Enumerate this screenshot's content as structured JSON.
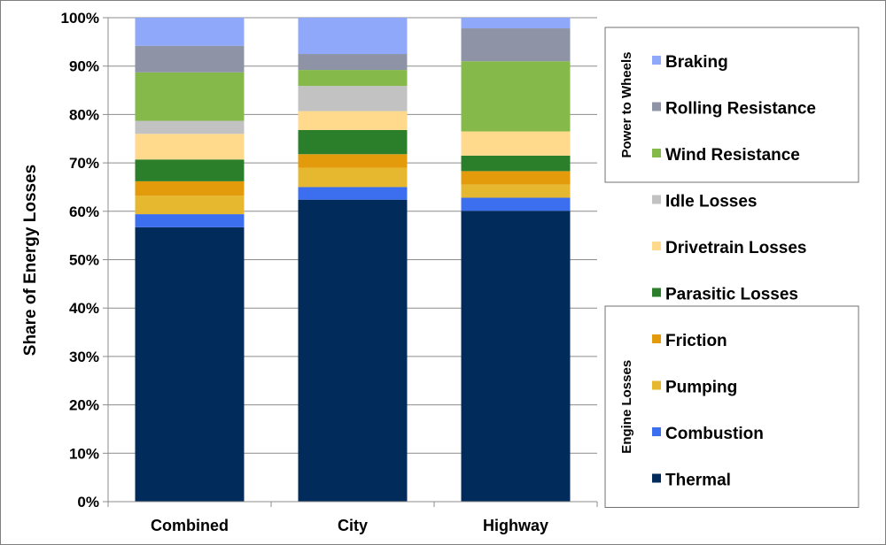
{
  "chart_data": {
    "type": "bar",
    "stacked": true,
    "categories": [
      "Combined",
      "City",
      "Highway"
    ],
    "ylabel": "Share of Energy Losses",
    "ylim": [
      0,
      100
    ],
    "yticks": [
      "0%",
      "10%",
      "20%",
      "30%",
      "40%",
      "50%",
      "60%",
      "70%",
      "80%",
      "90%",
      "100%"
    ],
    "legend_groups": [
      {
        "name": "Power to Wheels",
        "series": [
          "Braking",
          "Rolling Resistance",
          "Wind Resistance"
        ]
      },
      {
        "name": "Engine Losses",
        "series": [
          "Friction",
          "Pumping",
          "Combustion",
          "Thermal"
        ]
      }
    ],
    "series": [
      {
        "name": "Thermal",
        "color": "#002B5A",
        "values": [
          56.7,
          62.4,
          60.1
        ]
      },
      {
        "name": "Combustion",
        "color": "#3C6FF0",
        "values": [
          2.7,
          2.6,
          2.7
        ]
      },
      {
        "name": "Pumping",
        "color": "#E6B830",
        "values": [
          3.8,
          4.0,
          2.7
        ]
      },
      {
        "name": "Friction",
        "color": "#E39A0B",
        "values": [
          3.0,
          2.8,
          2.8
        ]
      },
      {
        "name": "Parasitic Losses",
        "color": "#2B7F2B",
        "values": [
          4.5,
          5.0,
          3.2
        ]
      },
      {
        "name": "Drivetrain Losses",
        "color": "#FFD98C",
        "values": [
          5.3,
          3.9,
          5.0
        ]
      },
      {
        "name": "Idle Losses",
        "color": "#C2C2C2",
        "values": [
          2.7,
          5.2,
          0.0
        ]
      },
      {
        "name": "Wind Resistance",
        "color": "#85BA4A",
        "values": [
          10.0,
          3.3,
          14.5
        ]
      },
      {
        "name": "Rolling Resistance",
        "color": "#8E94A6",
        "values": [
          5.5,
          3.3,
          6.8
        ]
      },
      {
        "name": "Braking",
        "color": "#90A8FA",
        "values": [
          5.8,
          7.5,
          2.2
        ]
      }
    ]
  }
}
